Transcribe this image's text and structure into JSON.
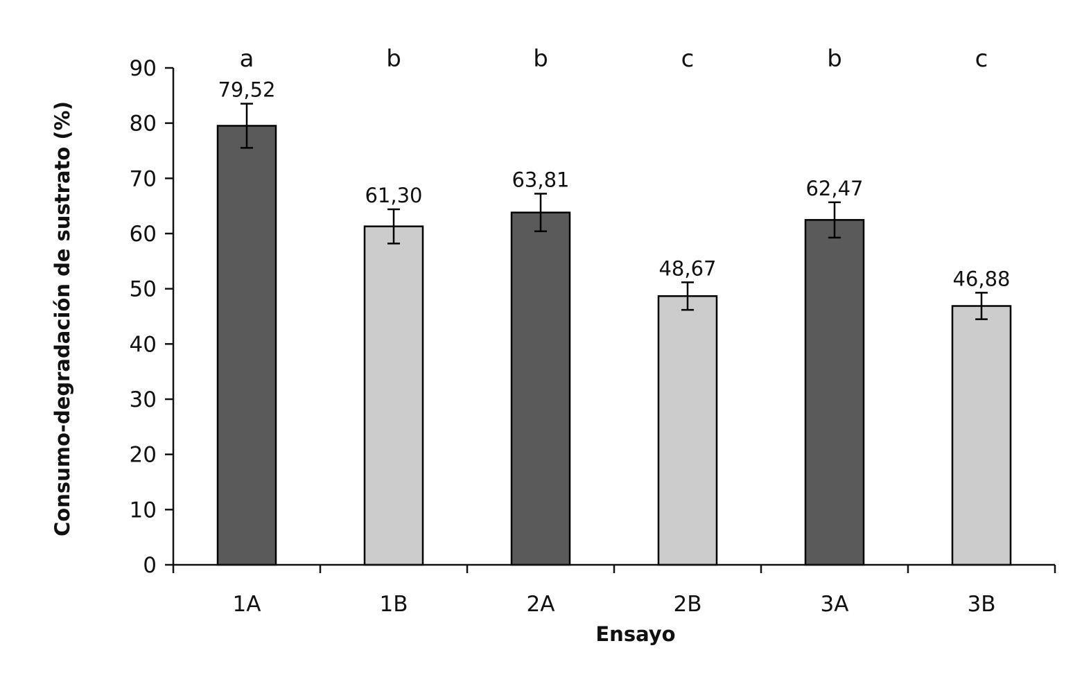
{
  "chart_data": {
    "type": "bar",
    "categories": [
      "1A",
      "1B",
      "2A",
      "2B",
      "3A",
      "3B"
    ],
    "values": [
      79.52,
      61.3,
      63.81,
      48.67,
      62.47,
      46.88
    ],
    "value_labels": [
      "79,52",
      "61,30",
      "63,81",
      "48,67",
      "62,47",
      "46,88"
    ],
    "error": [
      4.0,
      3.1,
      3.4,
      2.5,
      3.2,
      2.4
    ],
    "significance": [
      "a",
      "b",
      "b",
      "c",
      "b",
      "c"
    ],
    "title": "",
    "xlabel": "Ensayo",
    "ylabel": "Consumo-degradación  de sustrato (%)",
    "ylim": [
      0,
      90
    ],
    "yticks": [
      0,
      10,
      20,
      30,
      40,
      50,
      60,
      70,
      80,
      90
    ],
    "ytick_labels": [
      "0",
      "10",
      "20",
      "30",
      "40",
      "50",
      "60",
      "70",
      "80",
      "90"
    ],
    "grid": false,
    "legend": "none",
    "bar_colors": [
      "#5a5a5a",
      "#cccccc",
      "#5a5a5a",
      "#cccccc",
      "#5a5a5a",
      "#cccccc"
    ],
    "bar_edge_color": "#000000"
  }
}
